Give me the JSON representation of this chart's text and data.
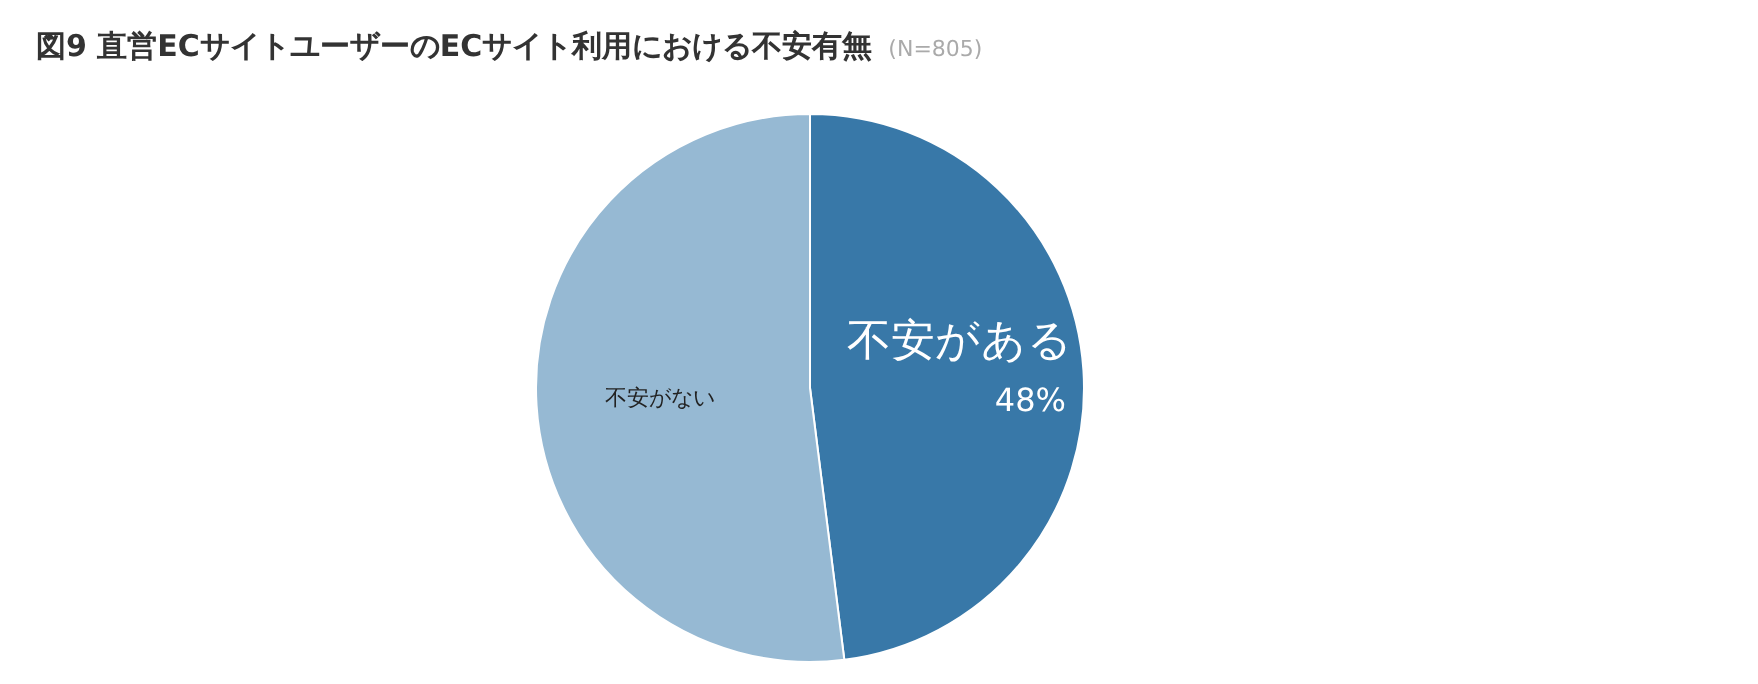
{
  "chart_data": {
    "type": "pie",
    "title": "図9  直営ECサイトユーザーのECサイト利用における不安有無",
    "subtitle": "(N=805)",
    "categories": [
      "不安がある",
      "不安がない"
    ],
    "values": [
      48,
      52
    ],
    "colors": [
      "#3878a8",
      "#96b9d3"
    ],
    "value_labels": [
      "48%",
      null
    ]
  }
}
